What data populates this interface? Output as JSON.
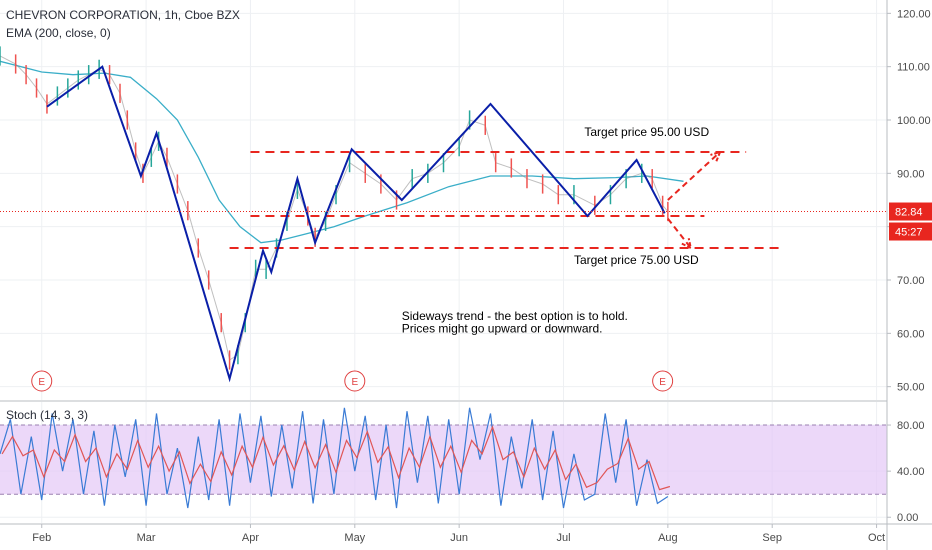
{
  "chart_data": {
    "type": "line",
    "title": "CHEVRON CORPORATION, 1h, Cboe BZX",
    "indicator_label": "EMA (200, close, 0)",
    "oscillator_label": "Stoch (14, 3, 3)",
    "x_axis": {
      "labels": [
        "Feb",
        "Mar",
        "Apr",
        "May",
        "Jun",
        "Jul",
        "Aug",
        "Sep",
        "Oct"
      ],
      "positions": [
        1.0,
        2.0,
        3.0,
        4.0,
        5.0,
        6.0,
        7.0,
        8.0,
        9.0
      ],
      "range": [
        0.6,
        9.1
      ]
    },
    "price_axis": {
      "ticks": [
        50,
        60,
        70,
        80,
        90,
        100,
        110,
        120
      ],
      "tick_labels": [
        "50.00",
        "60.00",
        "70.00",
        "80.00",
        "90.00",
        "100.00",
        "110.00",
        "120.00"
      ],
      "range": [
        47.5,
        122.5
      ]
    },
    "stoch_axis": {
      "ticks": [
        0,
        40,
        80
      ],
      "tick_labels": [
        "0.00",
        "40.00",
        "80.00"
      ],
      "range": [
        -5,
        100
      ],
      "band": [
        20,
        80
      ]
    },
    "current_price": {
      "value": 82.84,
      "label": "82.84",
      "countdown": "45:27"
    },
    "earnings_markers": [
      {
        "x": 1.0,
        "label": "E"
      },
      {
        "x": 4.0,
        "label": "E"
      },
      {
        "x": 6.95,
        "label": "E"
      }
    ],
    "price_series": [
      {
        "x": 0.6,
        "y": 112
      },
      {
        "x": 0.75,
        "y": 110.5
      },
      {
        "x": 0.85,
        "y": 108.5
      },
      {
        "x": 0.95,
        "y": 106
      },
      {
        "x": 1.05,
        "y": 103
      },
      {
        "x": 1.15,
        "y": 104.5
      },
      {
        "x": 1.25,
        "y": 106
      },
      {
        "x": 1.35,
        "y": 107.5
      },
      {
        "x": 1.45,
        "y": 108.5
      },
      {
        "x": 1.55,
        "y": 109.5
      },
      {
        "x": 1.65,
        "y": 108.5
      },
      {
        "x": 1.75,
        "y": 105
      },
      {
        "x": 1.82,
        "y": 100
      },
      {
        "x": 1.9,
        "y": 94
      },
      {
        "x": 1.97,
        "y": 90
      },
      {
        "x": 2.05,
        "y": 93
      },
      {
        "x": 2.12,
        "y": 96
      },
      {
        "x": 2.2,
        "y": 93
      },
      {
        "x": 2.3,
        "y": 88
      },
      {
        "x": 2.4,
        "y": 83
      },
      {
        "x": 2.5,
        "y": 76
      },
      {
        "x": 2.6,
        "y": 70
      },
      {
        "x": 2.72,
        "y": 62
      },
      {
        "x": 2.8,
        "y": 55
      },
      {
        "x": 2.88,
        "y": 56
      },
      {
        "x": 2.95,
        "y": 62
      },
      {
        "x": 3.05,
        "y": 72
      },
      {
        "x": 3.15,
        "y": 72
      },
      {
        "x": 3.25,
        "y": 76
      },
      {
        "x": 3.35,
        "y": 81
      },
      {
        "x": 3.45,
        "y": 87
      },
      {
        "x": 3.55,
        "y": 82
      },
      {
        "x": 3.62,
        "y": 78
      },
      {
        "x": 3.72,
        "y": 81
      },
      {
        "x": 3.82,
        "y": 86
      },
      {
        "x": 3.95,
        "y": 92
      },
      {
        "x": 4.1,
        "y": 90
      },
      {
        "x": 4.25,
        "y": 88
      },
      {
        "x": 4.4,
        "y": 85
      },
      {
        "x": 4.55,
        "y": 89
      },
      {
        "x": 4.7,
        "y": 90
      },
      {
        "x": 4.85,
        "y": 92
      },
      {
        "x": 5.0,
        "y": 95
      },
      {
        "x": 5.1,
        "y": 100
      },
      {
        "x": 5.25,
        "y": 99
      },
      {
        "x": 5.35,
        "y": 92
      },
      {
        "x": 5.5,
        "y": 91
      },
      {
        "x": 5.65,
        "y": 89
      },
      {
        "x": 5.8,
        "y": 88
      },
      {
        "x": 5.95,
        "y": 86
      },
      {
        "x": 6.1,
        "y": 86
      },
      {
        "x": 6.3,
        "y": 84
      },
      {
        "x": 6.45,
        "y": 86
      },
      {
        "x": 6.6,
        "y": 89
      },
      {
        "x": 6.75,
        "y": 90
      },
      {
        "x": 6.85,
        "y": 89
      },
      {
        "x": 6.95,
        "y": 84
      },
      {
        "x": 7.0,
        "y": 82.84
      }
    ],
    "ema_series": [
      {
        "x": 0.6,
        "y": 111
      },
      {
        "x": 1.0,
        "y": 109
      },
      {
        "x": 1.3,
        "y": 108.5
      },
      {
        "x": 1.6,
        "y": 108.8
      },
      {
        "x": 1.85,
        "y": 108
      },
      {
        "x": 2.1,
        "y": 104
      },
      {
        "x": 2.3,
        "y": 100
      },
      {
        "x": 2.5,
        "y": 93
      },
      {
        "x": 2.7,
        "y": 85
      },
      {
        "x": 2.9,
        "y": 80
      },
      {
        "x": 3.1,
        "y": 77
      },
      {
        "x": 3.3,
        "y": 77.5
      },
      {
        "x": 3.5,
        "y": 78.5
      },
      {
        "x": 3.8,
        "y": 80
      },
      {
        "x": 4.1,
        "y": 82
      },
      {
        "x": 4.5,
        "y": 84.5
      },
      {
        "x": 4.9,
        "y": 87.5
      },
      {
        "x": 5.3,
        "y": 89.5
      },
      {
        "x": 5.7,
        "y": 89.5
      },
      {
        "x": 6.1,
        "y": 89
      },
      {
        "x": 6.5,
        "y": 89.2
      },
      {
        "x": 6.8,
        "y": 89.5
      },
      {
        "x": 7.15,
        "y": 88.5
      }
    ],
    "zigzag": [
      {
        "x": 1.05,
        "y": 102.5
      },
      {
        "x": 1.58,
        "y": 110
      },
      {
        "x": 1.95,
        "y": 89.5
      },
      {
        "x": 2.1,
        "y": 97.5
      },
      {
        "x": 2.8,
        "y": 51.5
      },
      {
        "x": 3.12,
        "y": 75.5
      },
      {
        "x": 3.2,
        "y": 71.5
      },
      {
        "x": 3.45,
        "y": 89
      },
      {
        "x": 3.62,
        "y": 77
      },
      {
        "x": 3.97,
        "y": 94.5
      },
      {
        "x": 4.45,
        "y": 85
      },
      {
        "x": 5.3,
        "y": 103
      },
      {
        "x": 6.23,
        "y": 82
      },
      {
        "x": 6.7,
        "y": 92.5
      },
      {
        "x": 6.97,
        "y": 82.5
      }
    ],
    "horizontal_levels": [
      {
        "x1": 3.0,
        "x2": 7.75,
        "y": 94
      },
      {
        "x1": 3.0,
        "x2": 7.35,
        "y": 82
      },
      {
        "x1": 2.8,
        "x2": 8.1,
        "y": 76
      }
    ],
    "target_arrows": [
      {
        "from": {
          "x": 7.0,
          "y": 85
        },
        "to": {
          "x": 7.5,
          "y": 94
        }
      },
      {
        "from": {
          "x": 7.0,
          "y": 81.5
        },
        "to": {
          "x": 7.22,
          "y": 76
        }
      }
    ],
    "annotations": [
      {
        "text": "Target price 95.00 USD",
        "x": 6.2,
        "y": 97
      },
      {
        "text": "Target price 75.00 USD",
        "x": 6.1,
        "y": 73
      },
      {
        "text": "Sideways trend - the best option is to hold.",
        "x": 4.45,
        "y": 62.5
      },
      {
        "text": "Prices might go upward or downward.",
        "x": 4.45,
        "y": 60.2
      }
    ],
    "stoch_series": [
      {
        "x": 0.6,
        "y": 55
      },
      {
        "x": 0.7,
        "y": 85
      },
      {
        "x": 0.8,
        "y": 20
      },
      {
        "x": 0.9,
        "y": 70
      },
      {
        "x": 1.0,
        "y": 15
      },
      {
        "x": 1.1,
        "y": 90
      },
      {
        "x": 1.2,
        "y": 40
      },
      {
        "x": 1.3,
        "y": 85
      },
      {
        "x": 1.4,
        "y": 20
      },
      {
        "x": 1.5,
        "y": 75
      },
      {
        "x": 1.6,
        "y": 10
      },
      {
        "x": 1.7,
        "y": 80
      },
      {
        "x": 1.8,
        "y": 35
      },
      {
        "x": 1.9,
        "y": 85
      },
      {
        "x": 2.0,
        "y": 10
      },
      {
        "x": 2.1,
        "y": 90
      },
      {
        "x": 2.2,
        "y": 20
      },
      {
        "x": 2.3,
        "y": 60
      },
      {
        "x": 2.4,
        "y": 8
      },
      {
        "x": 2.5,
        "y": 70
      },
      {
        "x": 2.6,
        "y": 15
      },
      {
        "x": 2.7,
        "y": 85
      },
      {
        "x": 2.8,
        "y": 10
      },
      {
        "x": 2.9,
        "y": 90
      },
      {
        "x": 3.0,
        "y": 30
      },
      {
        "x": 3.1,
        "y": 88
      },
      {
        "x": 3.2,
        "y": 18
      },
      {
        "x": 3.3,
        "y": 80
      },
      {
        "x": 3.4,
        "y": 25
      },
      {
        "x": 3.5,
        "y": 92
      },
      {
        "x": 3.6,
        "y": 12
      },
      {
        "x": 3.7,
        "y": 85
      },
      {
        "x": 3.8,
        "y": 20
      },
      {
        "x": 3.9,
        "y": 95
      },
      {
        "x": 4.0,
        "y": 40
      },
      {
        "x": 4.1,
        "y": 88
      },
      {
        "x": 4.2,
        "y": 15
      },
      {
        "x": 4.3,
        "y": 80
      },
      {
        "x": 4.4,
        "y": 8
      },
      {
        "x": 4.5,
        "y": 92
      },
      {
        "x": 4.6,
        "y": 30
      },
      {
        "x": 4.7,
        "y": 88
      },
      {
        "x": 4.8,
        "y": 12
      },
      {
        "x": 4.9,
        "y": 85
      },
      {
        "x": 5.0,
        "y": 20
      },
      {
        "x": 5.1,
        "y": 95
      },
      {
        "x": 5.2,
        "y": 50
      },
      {
        "x": 5.3,
        "y": 90
      },
      {
        "x": 5.4,
        "y": 10
      },
      {
        "x": 5.5,
        "y": 70
      },
      {
        "x": 5.6,
        "y": 25
      },
      {
        "x": 5.7,
        "y": 85
      },
      {
        "x": 5.8,
        "y": 15
      },
      {
        "x": 5.9,
        "y": 75
      },
      {
        "x": 6.0,
        "y": 8
      },
      {
        "x": 6.1,
        "y": 55
      },
      {
        "x": 6.2,
        "y": 15
      },
      {
        "x": 6.3,
        "y": 20
      },
      {
        "x": 6.4,
        "y": 90
      },
      {
        "x": 6.5,
        "y": 30
      },
      {
        "x": 6.6,
        "y": 85
      },
      {
        "x": 6.7,
        "y": 10
      },
      {
        "x": 6.8,
        "y": 50
      },
      {
        "x": 6.9,
        "y": 12
      },
      {
        "x": 7.0,
        "y": 18
      }
    ],
    "colors": {
      "zigzag": "#0a1fa8",
      "ema": "#3aaec8",
      "level": "#e8261f",
      "price_line": "#e8261f",
      "stoch_k": "#3a7bd5",
      "stoch_d": "#e05656",
      "stoch_band": "#e4c7f7",
      "grid": "#eef0f3",
      "price_up": "#26a69a",
      "price_down": "#ef5350"
    }
  }
}
